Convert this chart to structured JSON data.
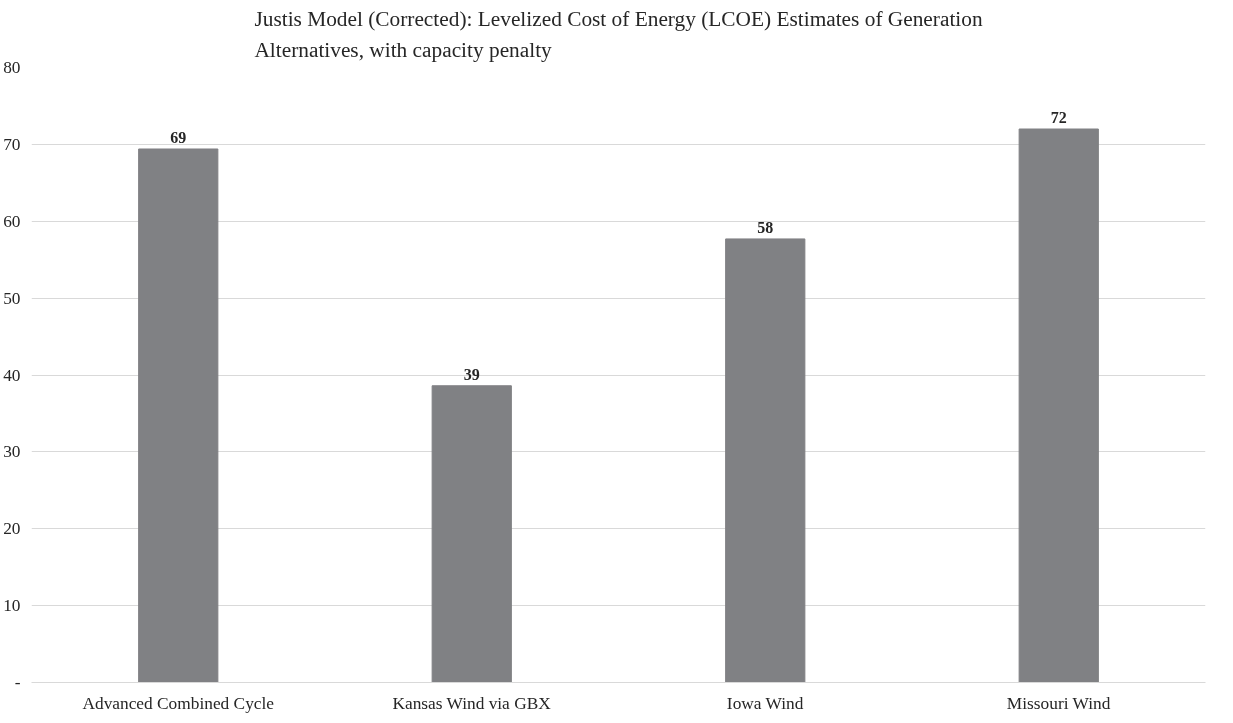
{
  "chart_data": {
    "type": "bar",
    "title": "Justis Model (Corrected): Levelized Cost of Energy (LCOE) Estimates of Generation Alternatives, with capacity penalty",
    "categories": [
      "Advanced Combined Cycle",
      "Kansas Wind via GBX",
      "Iowa Wind",
      "Missouri Wind"
    ],
    "values": [
      69.4,
      38.6,
      57.7,
      72.0
    ],
    "value_labels": [
      "69",
      "39",
      "58",
      "72"
    ],
    "color": "#808184",
    "ylim": [
      0,
      80
    ],
    "yticks": [
      {
        "value": 0,
        "label": "-"
      },
      10,
      20,
      30,
      40,
      50,
      60,
      70,
      80
    ],
    "grid": "y"
  }
}
